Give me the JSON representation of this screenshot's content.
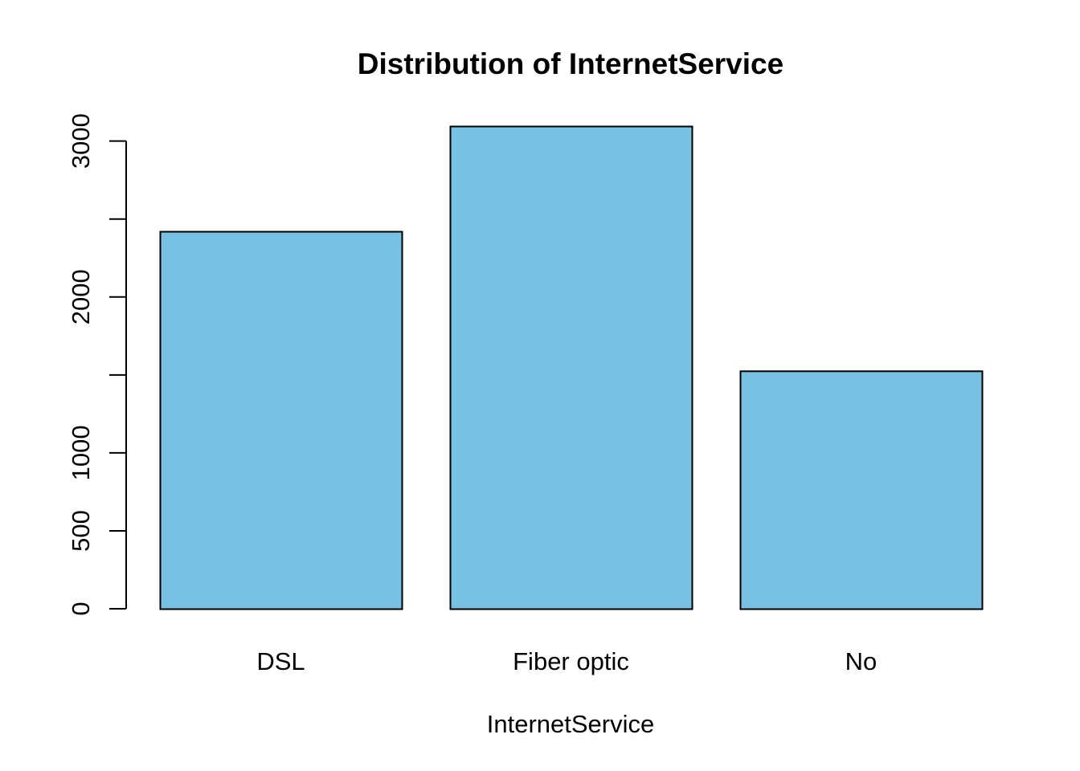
{
  "chart_data": {
    "type": "bar",
    "title": "Distribution of InternetService",
    "xlabel": "InternetService",
    "ylabel": "",
    "categories": [
      "DSL",
      "Fiber optic",
      "No"
    ],
    "values": [
      2421,
      3096,
      1526
    ],
    "ylim": [
      0,
      3096
    ],
    "yticks": [
      0,
      500,
      1000,
      2000,
      3000
    ],
    "yticks_minor": [
      0,
      500,
      1000,
      1500,
      2000,
      2500,
      3000
    ],
    "bar_color": "#79c1e4",
    "bar_edge_color": "#000000",
    "grid": false,
    "legend": "none"
  }
}
